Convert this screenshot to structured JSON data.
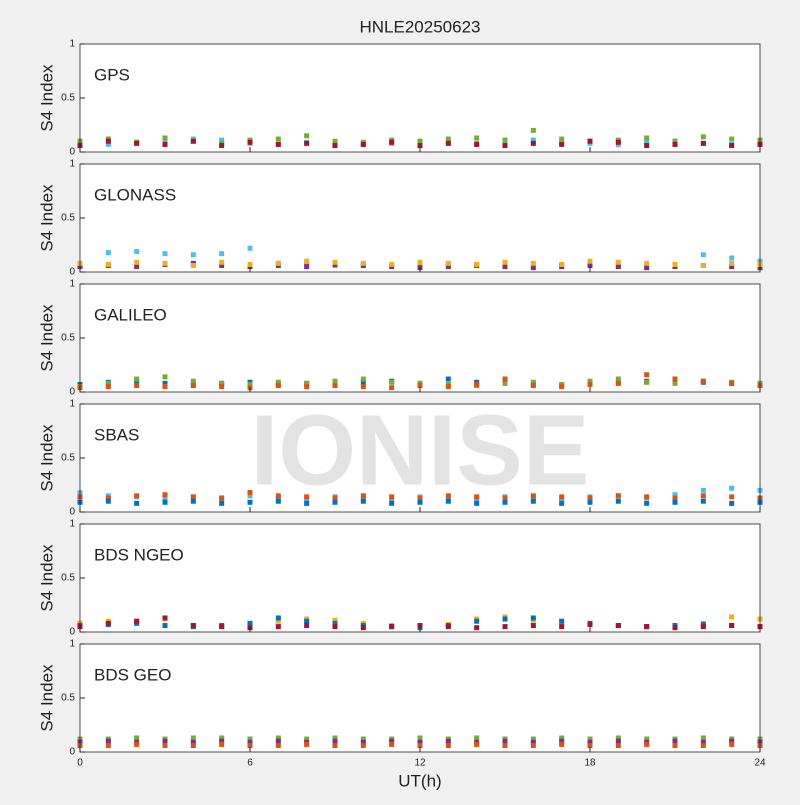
{
  "watermark": "IONISE",
  "chart_data": [
    {
      "type": "scatter",
      "title": "HNLE20250623",
      "annotation": "GPS",
      "ylabel": "S4 Index",
      "xlim": [
        0,
        24
      ],
      "xticks": [
        0,
        6,
        12,
        18,
        24
      ],
      "ylim": [
        0,
        1
      ],
      "yticks": [
        0,
        0.5,
        1
      ],
      "x": [
        0,
        1,
        2,
        3,
        4,
        5,
        6,
        7,
        8,
        9,
        10,
        11,
        12,
        13,
        14,
        15,
        16,
        17,
        18,
        19,
        20,
        21,
        22,
        23,
        24
      ],
      "series": [
        {
          "color": "#4DBEEE",
          "values": [
            0.08,
            0.07,
            0.09,
            0.1,
            0.12,
            0.11,
            0.08,
            0.07,
            0.09,
            0.08,
            0.07,
            0.08,
            0.1,
            0.09,
            0.08,
            0.1,
            0.11,
            0.09,
            0.08,
            0.07,
            0.09,
            0.1,
            0.08,
            0.07,
            0.08
          ]
        },
        {
          "color": "#77AC30",
          "values": [
            0.1,
            0.12,
            0.09,
            0.13,
            0.1,
            0.08,
            0.11,
            0.12,
            0.15,
            0.1,
            0.09,
            0.11,
            0.1,
            0.12,
            0.13,
            0.11,
            0.2,
            0.12,
            0.1,
            0.11,
            0.13,
            0.1,
            0.14,
            0.12,
            0.11
          ]
        },
        {
          "color": "#A2142F",
          "values": [
            0.06,
            0.1,
            0.08,
            0.07,
            0.1,
            0.06,
            0.09,
            0.07,
            0.08,
            0.06,
            0.07,
            0.09,
            0.06,
            0.08,
            0.07,
            0.06,
            0.08,
            0.07,
            0.1,
            0.09,
            0.06,
            0.07,
            0.08,
            0.06,
            0.07
          ]
        }
      ]
    },
    {
      "type": "scatter",
      "annotation": "GLONASS",
      "ylabel": "S4 Index",
      "xlim": [
        0,
        24
      ],
      "xticks": [
        0,
        6,
        12,
        18,
        24
      ],
      "ylim": [
        0,
        1
      ],
      "yticks": [
        0,
        0.5,
        1
      ],
      "x": [
        0,
        1,
        2,
        3,
        4,
        5,
        6,
        7,
        8,
        9,
        10,
        11,
        12,
        13,
        14,
        15,
        16,
        17,
        18,
        19,
        20,
        21,
        22,
        23,
        24
      ],
      "series": [
        {
          "color": "#4DBEEE",
          "values": [
            0.06,
            0.18,
            0.19,
            0.17,
            0.16,
            0.17,
            0.22,
            0.08,
            0.07,
            0.06,
            0.07,
            0.06,
            0.05,
            0.06,
            0.07,
            0.06,
            0.05,
            0.06,
            0.07,
            0.06,
            0.05,
            0.07,
            0.16,
            0.13,
            0.1
          ]
        },
        {
          "color": "#7E2F8E",
          "values": [
            0.05,
            0.06,
            0.05,
            0.07,
            0.08,
            0.06,
            0.05,
            0.06,
            0.05,
            0.07,
            0.06,
            0.05,
            0.04,
            0.05,
            0.06,
            0.05,
            0.04,
            0.05,
            0.06,
            0.05,
            0.04,
            0.05,
            0.06,
            0.05,
            0.04
          ]
        },
        {
          "color": "#EDB120",
          "values": [
            0.08,
            0.07,
            0.09,
            0.08,
            0.06,
            0.09,
            0.07,
            0.08,
            0.1,
            0.09,
            0.08,
            0.07,
            0.09,
            0.08,
            0.07,
            0.09,
            0.08,
            0.07,
            0.1,
            0.09,
            0.08,
            0.07,
            0.06,
            0.08,
            0.07
          ]
        }
      ]
    },
    {
      "type": "scatter",
      "annotation": "GALILEO",
      "ylabel": "S4 Index",
      "xlim": [
        0,
        24
      ],
      "xticks": [
        0,
        6,
        12,
        18,
        24
      ],
      "ylim": [
        0,
        1
      ],
      "yticks": [
        0,
        0.5,
        1
      ],
      "x": [
        0,
        1,
        2,
        3,
        4,
        5,
        6,
        7,
        8,
        9,
        10,
        11,
        12,
        13,
        14,
        15,
        16,
        17,
        18,
        19,
        20,
        21,
        22,
        23,
        24
      ],
      "series": [
        {
          "color": "#0072BD",
          "values": [
            0.07,
            0.09,
            0.1,
            0.08,
            0.07,
            0.08,
            0.09,
            0.07,
            0.08,
            0.07,
            0.09,
            0.1,
            0.08,
            0.12,
            0.09,
            0.08,
            0.07,
            0.06,
            0.08,
            0.09,
            0.1,
            0.12,
            0.09,
            0.08,
            0.07
          ]
        },
        {
          "color": "#77AC30",
          "values": [
            0.05,
            0.08,
            0.12,
            0.14,
            0.1,
            0.08,
            0.07,
            0.09,
            0.08,
            0.1,
            0.12,
            0.09,
            0.08,
            0.07,
            0.06,
            0.08,
            0.09,
            0.07,
            0.1,
            0.12,
            0.09,
            0.08,
            0.1,
            0.09,
            0.08
          ]
        },
        {
          "color": "#D95319",
          "values": [
            0.04,
            0.05,
            0.06,
            0.05,
            0.06,
            0.05,
            0.04,
            0.06,
            0.05,
            0.06,
            0.05,
            0.04,
            0.06,
            0.05,
            0.07,
            0.12,
            0.06,
            0.05,
            0.07,
            0.08,
            0.16,
            0.12,
            0.1,
            0.08,
            0.06
          ]
        }
      ]
    },
    {
      "type": "scatter",
      "annotation": "SBAS",
      "ylabel": "S4 Index",
      "xlim": [
        0,
        24
      ],
      "xticks": [
        0,
        6,
        12,
        18,
        24
      ],
      "ylim": [
        0,
        1
      ],
      "yticks": [
        0,
        0.5,
        1
      ],
      "x": [
        0,
        1,
        2,
        3,
        4,
        5,
        6,
        7,
        8,
        9,
        10,
        11,
        12,
        13,
        14,
        15,
        16,
        17,
        18,
        19,
        20,
        21,
        22,
        23,
        24
      ],
      "series": [
        {
          "color": "#4DBEEE",
          "values": [
            0.18,
            0.15,
            0.14,
            0.13,
            0.14,
            0.12,
            0.15,
            0.13,
            0.12,
            0.14,
            0.13,
            0.12,
            0.14,
            0.13,
            0.12,
            0.14,
            0.13,
            0.12,
            0.14,
            0.15,
            0.13,
            0.16,
            0.2,
            0.22,
            0.2
          ]
        },
        {
          "color": "#D95319",
          "values": [
            0.14,
            0.13,
            0.15,
            0.16,
            0.14,
            0.13,
            0.18,
            0.15,
            0.14,
            0.13,
            0.15,
            0.14,
            0.13,
            0.15,
            0.14,
            0.13,
            0.15,
            0.14,
            0.13,
            0.15,
            0.14,
            0.13,
            0.15,
            0.14,
            0.13
          ]
        },
        {
          "color": "#0072BD",
          "values": [
            0.09,
            0.1,
            0.08,
            0.09,
            0.1,
            0.08,
            0.09,
            0.1,
            0.08,
            0.09,
            0.1,
            0.08,
            0.09,
            0.1,
            0.08,
            0.09,
            0.1,
            0.08,
            0.09,
            0.1,
            0.08,
            0.09,
            0.1,
            0.08,
            0.09
          ]
        }
      ]
    },
    {
      "type": "scatter",
      "annotation": "BDS NGEO",
      "ylabel": "S4 Index",
      "xlim": [
        0,
        24
      ],
      "xticks": [
        0,
        6,
        12,
        18,
        24
      ],
      "ylim": [
        0,
        1
      ],
      "yticks": [
        0,
        0.5,
        1
      ],
      "x": [
        0,
        1,
        2,
        3,
        4,
        5,
        6,
        7,
        8,
        9,
        10,
        11,
        12,
        13,
        14,
        15,
        16,
        17,
        18,
        19,
        20,
        21,
        22,
        23,
        24
      ],
      "series": [
        {
          "color": "#EDB120",
          "values": [
            0.08,
            0.1,
            0.09,
            0.12,
            0.06,
            0.05,
            0.06,
            0.1,
            0.12,
            0.11,
            0.08,
            0.06,
            0.05,
            0.07,
            0.12,
            0.14,
            0.11,
            0.09,
            0.07,
            0.06,
            0.05,
            0.06,
            0.08,
            0.14,
            0.12
          ]
        },
        {
          "color": "#0072BD",
          "values": [
            0.06,
            0.07,
            0.08,
            0.06,
            0.05,
            0.06,
            0.08,
            0.13,
            0.1,
            0.08,
            0.06,
            0.05,
            0.04,
            0.06,
            0.1,
            0.12,
            0.13,
            0.1,
            0.08,
            0.06,
            0.05,
            0.06,
            0.07,
            0.06,
            0.05
          ]
        },
        {
          "color": "#A2142F",
          "values": [
            0.05,
            0.08,
            0.1,
            0.13,
            0.06,
            0.05,
            0.04,
            0.05,
            0.06,
            0.05,
            0.04,
            0.05,
            0.06,
            0.05,
            0.04,
            0.05,
            0.06,
            0.05,
            0.07,
            0.06,
            0.05,
            0.04,
            0.05,
            0.06,
            0.05
          ]
        }
      ]
    },
    {
      "type": "scatter",
      "annotation": "BDS GEO",
      "ylabel": "S4 Index",
      "xlabel": "UT(h)",
      "xlim": [
        0,
        24
      ],
      "xticks": [
        0,
        6,
        12,
        18,
        24
      ],
      "ylim": [
        0,
        1
      ],
      "yticks": [
        0,
        0.5,
        1
      ],
      "x": [
        0,
        1,
        2,
        3,
        4,
        5,
        6,
        7,
        8,
        9,
        10,
        11,
        12,
        13,
        14,
        15,
        16,
        17,
        18,
        19,
        20,
        21,
        22,
        23,
        24
      ],
      "series": [
        {
          "color": "#77AC30",
          "values": [
            0.12,
            0.12,
            0.13,
            0.12,
            0.13,
            0.13,
            0.12,
            0.13,
            0.12,
            0.13,
            0.12,
            0.12,
            0.13,
            0.12,
            0.13,
            0.12,
            0.12,
            0.13,
            0.12,
            0.13,
            0.12,
            0.12,
            0.13,
            0.12,
            0.12
          ]
        },
        {
          "color": "#7E2F8E",
          "values": [
            0.09,
            0.1,
            0.09,
            0.1,
            0.09,
            0.1,
            0.09,
            0.1,
            0.09,
            0.1,
            0.09,
            0.1,
            0.09,
            0.1,
            0.09,
            0.1,
            0.09,
            0.1,
            0.09,
            0.1,
            0.09,
            0.1,
            0.09,
            0.1,
            0.09
          ]
        },
        {
          "color": "#D95319",
          "values": [
            0.06,
            0.06,
            0.07,
            0.06,
            0.06,
            0.07,
            0.06,
            0.06,
            0.07,
            0.06,
            0.06,
            0.07,
            0.06,
            0.06,
            0.07,
            0.06,
            0.06,
            0.07,
            0.06,
            0.06,
            0.07,
            0.06,
            0.06,
            0.07,
            0.06
          ]
        }
      ]
    }
  ]
}
